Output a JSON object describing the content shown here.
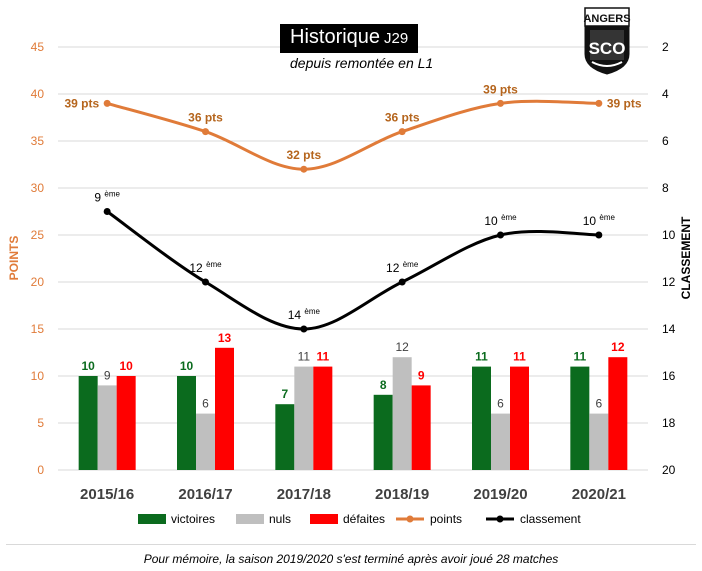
{
  "header": {
    "title": "Historique",
    "title_suffix": "J29",
    "subtitle": "depuis remontée en L1"
  },
  "logo": {
    "text": "ANGERS",
    "monogram": "SCO"
  },
  "footer": {
    "note": "Pour mémoire, la saison 2019/2020 s'est terminé après avoir joué 28 matches"
  },
  "colors": {
    "victoires": "#0b6b1e",
    "nuls": "#bfbfbf",
    "defaites": "#ff0000",
    "points": "#e07b39",
    "classement": "#000000",
    "points_labels": "#b5651d",
    "left_axis": "#e07b39"
  },
  "chart_data": {
    "type": "bar",
    "categories": [
      "2015/16",
      "2016/17",
      "2017/18",
      "2018/19",
      "2019/20",
      "2020/21"
    ],
    "series": [
      {
        "name": "victoires",
        "type": "bar",
        "axis": "left",
        "values": [
          10,
          10,
          7,
          8,
          11,
          11
        ]
      },
      {
        "name": "nuls",
        "type": "bar",
        "axis": "left",
        "values": [
          9,
          6,
          11,
          12,
          6,
          6
        ]
      },
      {
        "name": "défaites",
        "type": "bar",
        "axis": "left",
        "values": [
          10,
          13,
          11,
          9,
          11,
          12
        ]
      },
      {
        "name": "points",
        "type": "line",
        "axis": "left",
        "values": [
          39,
          36,
          32,
          36,
          39,
          39
        ],
        "labels": [
          "39 pts",
          "36 pts",
          "32 pts",
          "36 pts",
          "39 pts",
          "39 pts"
        ]
      },
      {
        "name": "classement",
        "type": "line",
        "axis": "right",
        "values": [
          9,
          12,
          14,
          12,
          10,
          10
        ],
        "labels": [
          "9 ème",
          "12 ème",
          "14 ème",
          "12 ème",
          "10 ème",
          "10 ème"
        ]
      }
    ],
    "left_axis": {
      "label": "POINTS",
      "min": 0,
      "max": 45,
      "ticks": [
        0,
        5,
        10,
        15,
        20,
        25,
        30,
        35,
        40,
        45
      ]
    },
    "right_axis": {
      "label": "CLASSEMENT",
      "min": 2,
      "max": 20,
      "reversed": true,
      "ticks": [
        2,
        4,
        6,
        8,
        10,
        12,
        14,
        16,
        18,
        20
      ]
    },
    "grid": true,
    "legend_position": "bottom"
  }
}
